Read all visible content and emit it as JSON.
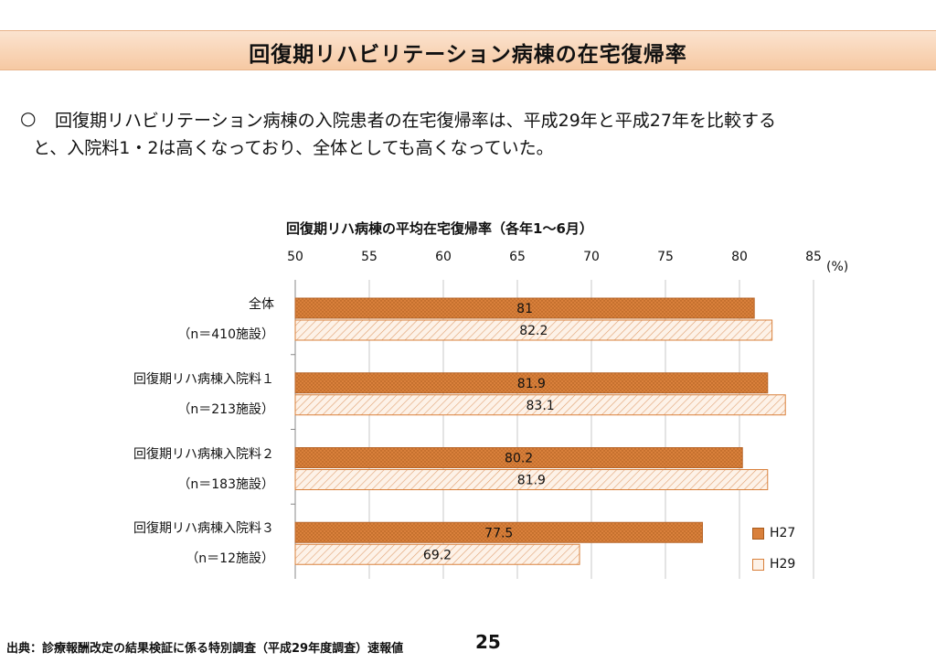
{
  "header": {
    "title": "回復期リハビリテーション病棟の在宅復帰率"
  },
  "lead": {
    "bullet": "○",
    "line1": "回復期リハビリテーション病棟の入院患者の在宅復帰率は、平成29年と平成27年を比較する",
    "line2": "と、入院料1・2は高くなっており、全体としても高くなっていた。"
  },
  "chart_data": {
    "type": "bar",
    "orientation": "horizontal",
    "title": "回復期リハ病棟の平均在宅復帰率（各年1～6月）",
    "unit": "(%)",
    "xlim": [
      50,
      85
    ],
    "xticks": [
      50,
      55,
      60,
      65,
      70,
      75,
      80,
      85
    ],
    "grid": true,
    "legend_position": "bottom-right",
    "categories": [
      {
        "label": "全体",
        "sub": "（n＝410施設）"
      },
      {
        "label": "回復期リハ病棟入院料１",
        "sub": "（n＝213施設）"
      },
      {
        "label": "回復期リハ病棟入院料２",
        "sub": "（n＝183施設）"
      },
      {
        "label": "回復期リハ病棟入院料３",
        "sub": "（n＝12施設）"
      }
    ],
    "series": [
      {
        "name": "H27",
        "values": [
          81,
          81.9,
          80.2,
          77.5
        ],
        "labels": [
          "81",
          "81.9",
          "80.2",
          "77.5"
        ],
        "color": "#d9803b"
      },
      {
        "name": "H29",
        "values": [
          82.2,
          83.1,
          81.9,
          69.2
        ],
        "labels": [
          "82.2",
          "83.1",
          "81.9",
          "69.2"
        ],
        "color": "#f6d6b8"
      }
    ]
  },
  "footer": {
    "source": "出典：診療報酬改定の結果検証に係る特別調査（平成29年度調査）速報値",
    "page": "25"
  }
}
